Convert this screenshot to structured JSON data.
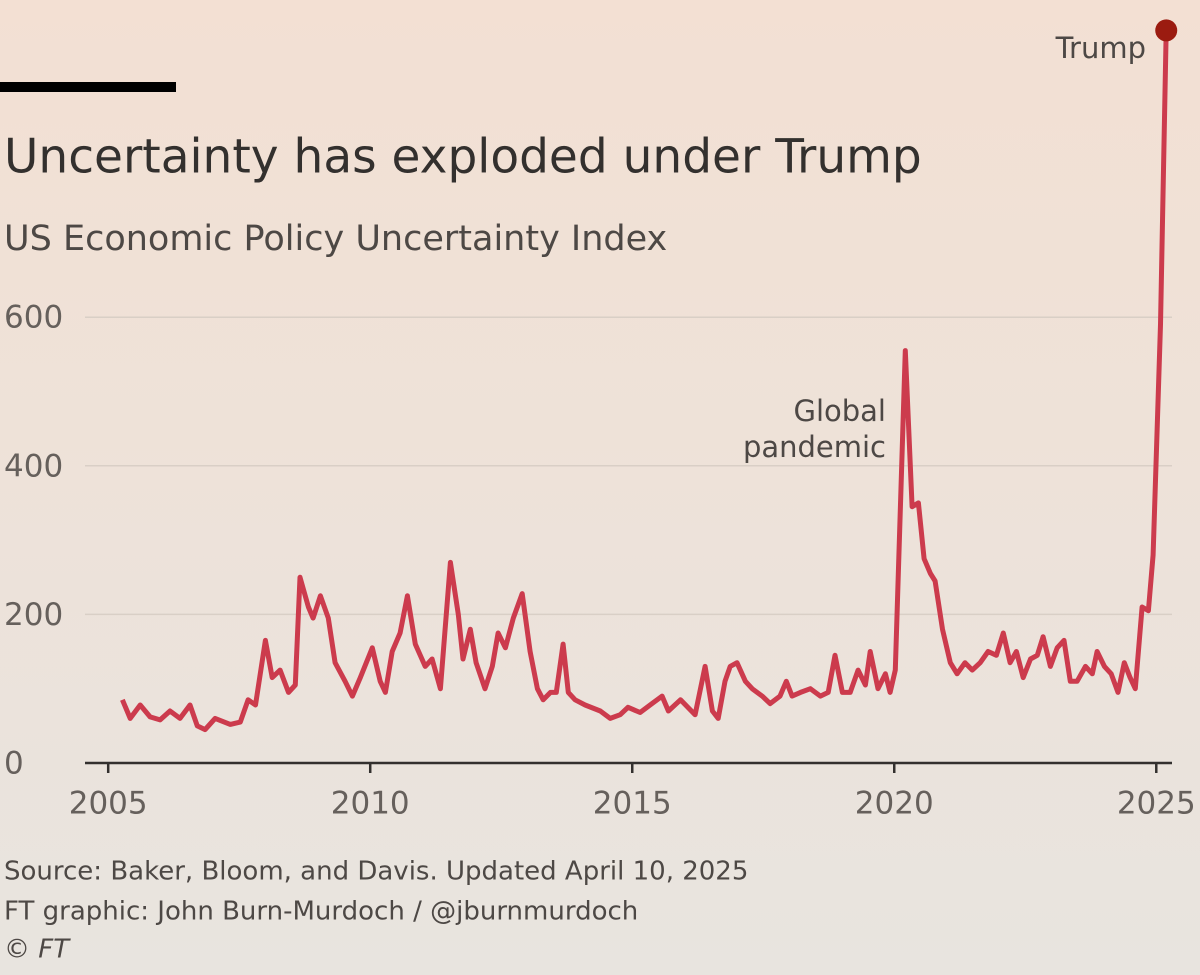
{
  "chart_data": {
    "type": "line",
    "title": "Uncertainty has exploded under Trump",
    "subtitle": "US Economic Policy Uncertainty Index",
    "source": [
      "Source: Baker, Bloom, and Davis. Updated April 10, 2025",
      "FT graphic: John Burn-Murdoch / @jburnmurdoch",
      "© FT"
    ],
    "annotations": [
      [
        "Global",
        "pandemic"
      ],
      [
        "Trump"
      ]
    ],
    "xlim": [
      2004.5,
      2025.3
    ],
    "xticks": [
      2005,
      2010,
      2015,
      2020,
      2025
    ],
    "ylim": [
      0,
      1000
    ],
    "yticks": [
      0,
      200,
      400,
      600
    ],
    "grid": true,
    "series": [
      {
        "name": "US Economic Policy Uncertainty Index",
        "color": "#cc3b4d",
        "x": [
          2005.27,
          2005.42,
          2005.61,
          2005.8,
          2005.99,
          2006.18,
          2006.37,
          2006.56,
          2006.7,
          2006.85,
          2007.04,
          2007.33,
          2007.52,
          2007.67,
          2007.81,
          2008.0,
          2008.13,
          2008.28,
          2008.44,
          2008.57,
          2008.66,
          2008.82,
          2008.91,
          2009.05,
          2009.2,
          2009.33,
          2009.52,
          2009.66,
          2009.81,
          2010.04,
          2010.19,
          2010.29,
          2010.42,
          2010.57,
          2010.71,
          2010.86,
          2011.05,
          2011.18,
          2011.34,
          2011.53,
          2011.68,
          2011.77,
          2011.91,
          2012.02,
          2012.19,
          2012.33,
          2012.44,
          2012.58,
          2012.73,
          2012.9,
          2013.05,
          2013.19,
          2013.3,
          2013.44,
          2013.55,
          2013.68,
          2013.78,
          2013.91,
          2014.1,
          2014.39,
          2014.58,
          2014.77,
          2014.92,
          2015.15,
          2015.34,
          2015.57,
          2015.69,
          2015.92,
          2016.2,
          2016.39,
          2016.53,
          2016.64,
          2016.77,
          2016.87,
          2017.0,
          2017.16,
          2017.29,
          2017.48,
          2017.63,
          2017.82,
          2017.94,
          2018.05,
          2018.21,
          2018.4,
          2018.59,
          2018.74,
          2018.87,
          2019.01,
          2019.16,
          2019.31,
          2019.45,
          2019.54,
          2019.69,
          2019.83,
          2019.92,
          2020.02,
          2020.21,
          2020.34,
          2020.46,
          2020.57,
          2020.69,
          2020.78,
          2020.92,
          2021.07,
          2021.2,
          2021.35,
          2021.49,
          2021.64,
          2021.79,
          2021.95,
          2022.08,
          2022.21,
          2022.33,
          2022.46,
          2022.6,
          2022.73,
          2022.84,
          2022.98,
          2023.11,
          2023.24,
          2023.36,
          2023.49,
          2023.65,
          2023.78,
          2023.87,
          2024.01,
          2024.14,
          2024.27,
          2024.39,
          2024.5,
          2024.6,
          2024.73,
          2024.85,
          2024.94,
          2025.08,
          2025.19
        ],
        "values": [
          85,
          60,
          78,
          62,
          58,
          70,
          60,
          78,
          50,
          45,
          60,
          52,
          55,
          85,
          78,
          165,
          115,
          125,
          95,
          105,
          250,
          210,
          195,
          225,
          195,
          135,
          110,
          90,
          115,
          155,
          110,
          95,
          150,
          175,
          225,
          160,
          130,
          140,
          100,
          270,
          200,
          140,
          180,
          135,
          100,
          130,
          175,
          155,
          195,
          228,
          150,
          100,
          85,
          95,
          95,
          160,
          95,
          85,
          78,
          70,
          60,
          65,
          75,
          68,
          78,
          90,
          70,
          85,
          65,
          130,
          70,
          60,
          110,
          130,
          135,
          110,
          100,
          90,
          80,
          90,
          110,
          90,
          95,
          100,
          90,
          95,
          145,
          95,
          95,
          125,
          105,
          150,
          100,
          120,
          95,
          125,
          555,
          345,
          350,
          275,
          255,
          245,
          180,
          135,
          120,
          135,
          125,
          135,
          150,
          145,
          175,
          135,
          150,
          115,
          140,
          145,
          170,
          130,
          155,
          165,
          110,
          110,
          130,
          120,
          150,
          130,
          120,
          95,
          135,
          115,
          100,
          210,
          205,
          280,
          590,
          986
        ]
      }
    ]
  }
}
